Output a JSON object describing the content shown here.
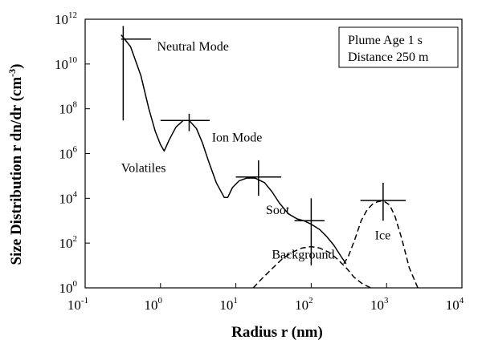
{
  "chart_data": {
    "type": "line",
    "xscale": "log",
    "yscale": "log",
    "xlim": [
      0.1,
      10000
    ],
    "ylim": [
      1,
      1000000000000
    ],
    "xlabel": "Radius r (nm)",
    "ylabel": "Size Distribution r dn/dr (cm",
    "ylabel_exp": "-3",
    "ylabel_close": ")",
    "xticks": [
      {
        "value": 0.1,
        "base": "10",
        "exp": "-1"
      },
      {
        "value": 1,
        "base": "10",
        "exp": "0"
      },
      {
        "value": 10,
        "base": "10",
        "exp": "1"
      },
      {
        "value": 100,
        "base": "10",
        "exp": "2"
      },
      {
        "value": 1000,
        "base": "10",
        "exp": "3"
      },
      {
        "value": 10000,
        "base": "10",
        "exp": "4"
      }
    ],
    "yticks": [
      {
        "value": 1,
        "base": "10",
        "exp": "0"
      },
      {
        "value": 100,
        "base": "10",
        "exp": "2"
      },
      {
        "value": 10000,
        "base": "10",
        "exp": "4"
      },
      {
        "value": 1000000,
        "base": "10",
        "exp": "6"
      },
      {
        "value": 100000000,
        "base": "10",
        "exp": "8"
      },
      {
        "value": 10000000000,
        "base": "10",
        "exp": "10"
      },
      {
        "value": 1000000000000,
        "base": "10",
        "exp": "12"
      }
    ],
    "legend_box": {
      "lines": [
        "Plume Age 1 s",
        "Distance 250 m"
      ],
      "placement": "top-right"
    },
    "series": [
      {
        "style": "solid",
        "x": [
          0.3,
          0.4,
          0.55,
          0.7,
          0.85,
          1.0,
          1.12,
          1.3,
          1.6,
          2.0,
          2.4,
          3.0,
          3.6,
          4.3,
          5.5,
          7.0,
          7.8,
          9.0,
          11.0,
          14.0,
          18.0,
          24.0,
          30.0,
          38.0,
          50.0,
          65.0,
          80.0,
          100.0,
          130.0,
          160.0,
          200.0,
          250.0,
          290.0
        ],
        "y": [
          200000000000.0,
          60000000000.0,
          3000000000.0,
          100000000.0,
          10000000.0,
          2500000.0,
          1300000.0,
          4000000.0,
          15000000.0,
          30000000.0,
          30000000.0,
          13000000.0,
          3000000.0,
          500000.0,
          50000.0,
          11000.0,
          11000.0,
          30000.0,
          60000.0,
          80000.0,
          80000.0,
          50000.0,
          20000.0,
          6000.0,
          2000.0,
          1200.0,
          1000.0,
          700,
          400,
          200,
          80,
          25,
          12
        ]
      },
      {
        "style": "dashed",
        "name": "Background",
        "x": [
          17,
          22,
          30,
          40,
          55,
          75,
          100,
          130,
          170,
          220,
          290,
          370,
          480,
          620
        ],
        "y": [
          1,
          2.5,
          7,
          18,
          38,
          60,
          70,
          60,
          40,
          20,
          8,
          3,
          1.5,
          1
        ]
      },
      {
        "style": "dashed",
        "name": "Ice",
        "x": [
          270,
          310,
          380,
          460,
          550,
          650,
          750,
          850,
          950,
          1100,
          1300,
          1600,
          2000,
          2600
        ],
        "y": [
          12,
          25,
          150,
          1000,
          3000,
          5500,
          7000,
          7500,
          7000,
          5000,
          1500,
          150,
          8,
          1
        ]
      }
    ],
    "crosses": [
      {
        "x": 0.32,
        "y": 130000000000.0,
        "x_lo": 0.3,
        "x_hi": 0.75,
        "y_lo": 30000000.0,
        "y_hi": 500000000000.0
      },
      {
        "x": 2.4,
        "y": 30000000.0,
        "x_lo": 1.0,
        "x_hi": 4.5,
        "y_lo": 10000000.0,
        "y_hi": 60000000.0
      },
      {
        "x": 20,
        "y": 90000.0,
        "x_lo": 10,
        "x_hi": 40,
        "y_lo": 13000.0,
        "y_hi": 500000.0
      },
      {
        "x": 100,
        "y": 1000.0,
        "x_lo": 60,
        "x_hi": 150,
        "y_lo": 10,
        "y_hi": 10000.0
      },
      {
        "x": 900,
        "y": 8000.0,
        "x_lo": 450,
        "x_hi": 1800,
        "y_lo": 1000.0,
        "y_hi": 50000.0
      }
    ],
    "annotations": [
      {
        "text": "Neutral Mode",
        "x": 0.9,
        "y": 40000000000.0
      },
      {
        "text": "Ion Mode",
        "x": 4.8,
        "y": 3500000.0
      },
      {
        "text": "Volatiles",
        "x": 0.3,
        "y": 150000.0
      },
      {
        "text": "Soot",
        "x": 25,
        "y": 2000.0
      },
      {
        "text": "Background",
        "x": 30,
        "y": 20
      },
      {
        "text": "Ice",
        "x": 700,
        "y": 150
      }
    ]
  }
}
